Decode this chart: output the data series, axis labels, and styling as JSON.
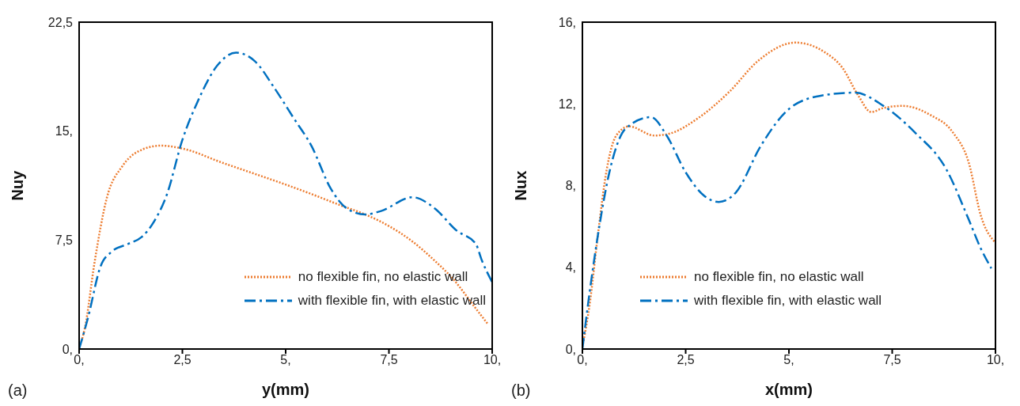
{
  "chart_data": [
    {
      "type": "line",
      "xlabel": "y(mm)",
      "ylabel": "Nuy",
      "annotations": [
        "(a)"
      ],
      "xlim": [
        0,
        10
      ],
      "ylim": [
        0,
        22.5
      ],
      "xticks": [
        {
          "value": 0,
          "label": "0,"
        },
        {
          "value": 2.5,
          "label": "2,5"
        },
        {
          "value": 5,
          "label": "5,"
        },
        {
          "value": 7.5,
          "label": "7,5"
        },
        {
          "value": 10,
          "label": "10,"
        }
      ],
      "yticks": [
        {
          "value": 0,
          "label": "0,"
        },
        {
          "value": 7.5,
          "label": "7,5"
        },
        {
          "value": 15,
          "label": "15,"
        },
        {
          "value": 22.5,
          "label": "22,5"
        }
      ],
      "grid": false,
      "legend": "bottom right",
      "series": [
        {
          "name": "no flexible fin, no elastic wall",
          "color": "#ed7d31",
          "line_style": "dotted",
          "x": [
            0,
            0.14,
            0.37,
            0.67,
            1.05,
            1.43,
            1.97,
            2.5,
            3.49,
            4.26,
            5.02,
            5.78,
            6.32,
            6.93,
            7.54,
            8.07,
            8.6,
            9.06,
            9.6,
            9.9
          ],
          "values": [
            0.1,
            1.45,
            5.9,
            10.4,
            12.6,
            13.6,
            14.0,
            13.8,
            12.8,
            12.05,
            11.3,
            10.5,
            9.9,
            9.26,
            8.4,
            7.4,
            6.1,
            4.8,
            2.8,
            1.7
          ]
        },
        {
          "name": "with flexible fin, with elastic wall",
          "color": "#0070c0",
          "line_style": "dashed",
          "x": [
            0,
            0.21,
            0.52,
            0.79,
            1.2,
            1.51,
            1.82,
            2.12,
            2.5,
            2.88,
            3.34,
            3.8,
            4.26,
            4.72,
            5.17,
            5.63,
            6.09,
            6.47,
            6.93,
            7.31,
            8.07,
            8.6,
            9.14,
            9.6,
            9.75,
            10
          ],
          "values": [
            0,
            2.1,
            5.7,
            6.7,
            7.25,
            7.7,
            8.8,
            10.6,
            14.4,
            17.1,
            19.5,
            20.4,
            19.8,
            18.0,
            16.0,
            13.95,
            11.05,
            9.7,
            9.26,
            9.5,
            10.45,
            9.7,
            8.15,
            7.25,
            6.1,
            4.6
          ]
        }
      ]
    },
    {
      "type": "line",
      "xlabel": "x(mm)",
      "ylabel": "Nux",
      "annotations": [
        "(b)"
      ],
      "xlim": [
        0,
        10
      ],
      "ylim": [
        0,
        16
      ],
      "xticks": [
        {
          "value": 0,
          "label": "0,"
        },
        {
          "value": 2.5,
          "label": "2,5"
        },
        {
          "value": 5,
          "label": "5,"
        },
        {
          "value": 7.5,
          "label": "7,5"
        },
        {
          "value": 10,
          "label": "10,"
        }
      ],
      "yticks": [
        {
          "value": 0,
          "label": "0,"
        },
        {
          "value": 4,
          "label": "4,"
        },
        {
          "value": 8,
          "label": "8,"
        },
        {
          "value": 12,
          "label": "12,"
        },
        {
          "value": 16,
          "label": "16,"
        }
      ],
      "grid": false,
      "legend": "bottom",
      "series": [
        {
          "name": "no flexible fin, no elastic wall",
          "color": "#ed7d31",
          "line_style": "dotted",
          "x": [
            0,
            0.18,
            0.37,
            0.59,
            0.82,
            1.13,
            1.74,
            2.12,
            2.8,
            3.56,
            4.25,
            5.16,
            5.85,
            6.3,
            6.68,
            6.99,
            7.29,
            7.75,
            8.43,
            8.97,
            9.35,
            9.65,
            10
          ],
          "values": [
            0.1,
            2.25,
            5.5,
            8.8,
            10.45,
            10.9,
            10.45,
            10.55,
            11.3,
            12.6,
            14.1,
            15.0,
            14.55,
            13.75,
            12.4,
            11.6,
            11.8,
            11.9,
            11.45,
            10.6,
            9.15,
            6.5,
            5.2
          ]
        },
        {
          "name": "with flexible fin, with elastic wall",
          "color": "#0070c0",
          "line_style": "dashed",
          "x": [
            0,
            0.14,
            0.37,
            0.67,
            1.05,
            1.66,
            2.04,
            2.5,
            2.95,
            3.3,
            3.71,
            4.32,
            5.0,
            5.77,
            6.6,
            7.29,
            8.05,
            8.81,
            9.35,
            9.65,
            9.9
          ],
          "values": [
            0,
            2.25,
            5.5,
            8.8,
            10.8,
            11.35,
            10.45,
            8.65,
            7.5,
            7.2,
            7.65,
            9.95,
            11.75,
            12.4,
            12.55,
            11.9,
            10.6,
            8.8,
            6.35,
            4.9,
            3.95
          ]
        }
      ]
    }
  ]
}
